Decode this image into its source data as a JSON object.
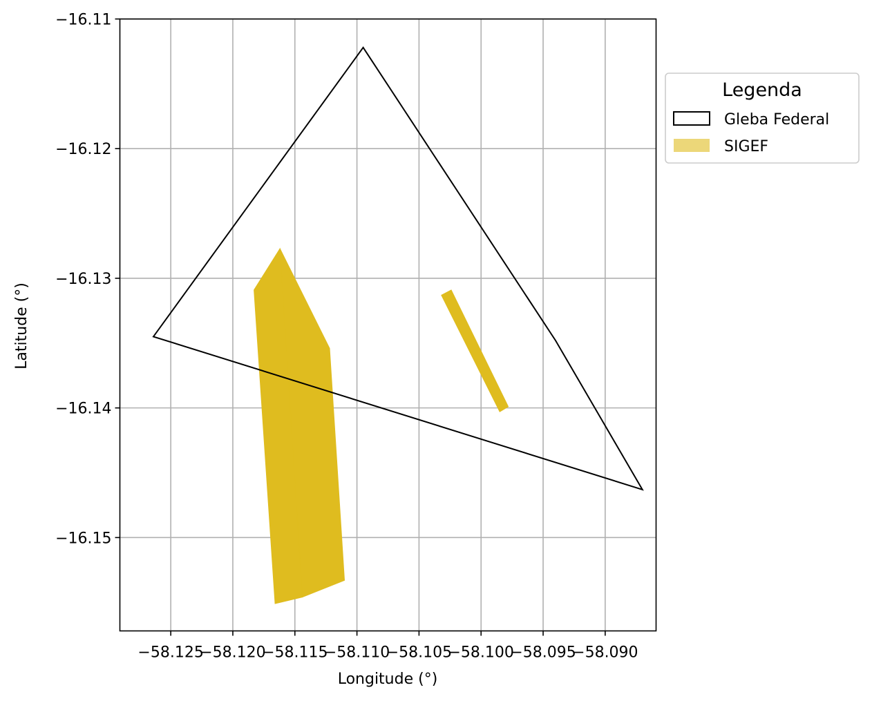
{
  "chart_data": {
    "type": "map",
    "xlabel": "Longitude (°)",
    "ylabel": "Latitude (°)",
    "xlim": [
      -58.1291,
      -58.0859
    ],
    "ylim": [
      -16.1572,
      -16.11
    ],
    "xticks": [
      {
        "value": -58.125,
        "label": "−58.125"
      },
      {
        "value": -58.12,
        "label": "−58.120"
      },
      {
        "value": -58.115,
        "label": "−58.115"
      },
      {
        "value": -58.11,
        "label": "−58.110"
      },
      {
        "value": -58.105,
        "label": "−58.105"
      },
      {
        "value": -58.1,
        "label": "−58.100"
      },
      {
        "value": -58.095,
        "label": "−58.095"
      },
      {
        "value": -58.09,
        "label": "−58.090"
      }
    ],
    "yticks": [
      {
        "value": -16.11,
        "label": "−16.11"
      },
      {
        "value": -16.12,
        "label": "−16.12"
      },
      {
        "value": -16.13,
        "label": "−16.13"
      },
      {
        "value": -16.14,
        "label": "−16.14"
      },
      {
        "value": -16.15,
        "label": "−16.15"
      }
    ],
    "grid": true,
    "legend": {
      "title": "Legenda",
      "position": "outside-right-top",
      "entries": [
        {
          "label": "Gleba Federal",
          "style": "outline",
          "color": "#000000"
        },
        {
          "label": "SIGEF",
          "style": "fill",
          "color": "#dfbc1f"
        }
      ]
    },
    "series": [
      {
        "name": "Gleba Federal",
        "kind": "outline",
        "color": "#000000",
        "polygons": [
          [
            [
              -58.1264,
              -16.1345
            ],
            [
              -58.1095,
              -16.1122
            ],
            [
              -58.094,
              -16.1348
            ],
            [
              -58.087,
              -16.1463
            ]
          ]
        ]
      },
      {
        "name": "SIGEF",
        "kind": "fill",
        "color": "#dfbc1f",
        "polygons": [
          [
            [
              -58.1183,
              -16.1309
            ],
            [
              -58.1162,
              -16.1277
            ],
            [
              -58.1144,
              -16.1546
            ],
            [
              -58.1166,
              -16.1551
            ]
          ],
          [
            [
              -58.1162,
              -16.1277
            ],
            [
              -58.1122,
              -16.1354
            ],
            [
              -58.111,
              -16.1533
            ],
            [
              -58.1144,
              -16.1546
            ]
          ],
          [
            [
              -58.1032,
              -16.1313
            ],
            [
              -58.1024,
              -16.1309
            ],
            [
              -58.0978,
              -16.1399
            ],
            [
              -58.0985,
              -16.1403
            ]
          ]
        ]
      }
    ]
  }
}
